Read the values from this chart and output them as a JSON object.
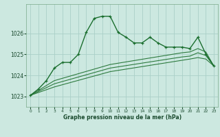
{
  "xlabel": "Graphe pression niveau de la mer (hPa)",
  "background_color": "#cce8e0",
  "grid_color": "#aacfc8",
  "line_color_main": "#1a6e2e",
  "line_color_range1": "#2d7a3e",
  "line_color_range2": "#2d7a3e",
  "xlim": [
    -0.5,
    23.5
  ],
  "ylim": [
    1022.5,
    1027.4
  ],
  "yticks": [
    1023,
    1024,
    1025,
    1026
  ],
  "xticks": [
    0,
    1,
    2,
    3,
    4,
    5,
    6,
    7,
    8,
    9,
    10,
    11,
    12,
    13,
    14,
    15,
    16,
    17,
    18,
    19,
    20,
    21,
    22,
    23
  ],
  "main_x": [
    0,
    1,
    2,
    3,
    4,
    5,
    6,
    7,
    8,
    9,
    10,
    11,
    12,
    13,
    14,
    15,
    16,
    17,
    18,
    19,
    20,
    21,
    22,
    23
  ],
  "main_y": [
    1023.05,
    1023.35,
    1023.75,
    1024.35,
    1024.62,
    1024.62,
    1025.0,
    1026.05,
    1026.72,
    1026.82,
    1026.82,
    1026.05,
    1025.82,
    1025.55,
    1025.55,
    1025.82,
    1025.55,
    1025.35,
    1025.35,
    1025.35,
    1025.28,
    1025.82,
    1025.02,
    1024.45
  ],
  "range1_x": [
    0,
    3,
    10,
    19,
    20,
    21,
    22,
    23
  ],
  "range1_y": [
    1023.05,
    1023.75,
    1024.52,
    1025.08,
    1025.12,
    1025.28,
    1025.12,
    1024.45
  ],
  "range2_x": [
    0,
    3,
    10,
    19,
    20,
    21,
    22,
    23
  ],
  "range2_y": [
    1023.05,
    1023.6,
    1024.35,
    1024.88,
    1024.92,
    1025.08,
    1024.95,
    1024.45
  ],
  "range3_x": [
    0,
    3,
    10,
    19,
    20,
    21,
    22,
    23
  ],
  "range3_y": [
    1023.05,
    1023.45,
    1024.18,
    1024.72,
    1024.78,
    1024.85,
    1024.78,
    1024.45
  ]
}
